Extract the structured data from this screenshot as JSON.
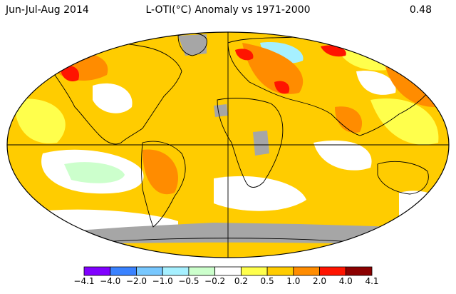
{
  "header": {
    "period": "Jun-Jul-Aug 2014",
    "title": "L-OTI(°C) Anomaly vs 1971-2000",
    "global_mean": "0.48"
  },
  "legend": {
    "labels": [
      "−4.1",
      "−4.0",
      "−2.0",
      "−1.0",
      "−0.5",
      "−0.2",
      "0.2",
      "0.5",
      "1.0",
      "2.0",
      "4.0",
      "4.1"
    ],
    "colors": [
      "#8000ff",
      "#3a82ff",
      "#78c8ff",
      "#a6f0ff",
      "#ccffcc",
      "#ffffff",
      "#ffff4c",
      "#ffcc00",
      "#ff8c00",
      "#ff1400",
      "#8b0000"
    ]
  },
  "palette": {
    "missing": "#a6a6a6",
    "land_outline": "#000000",
    "frame": "#000000"
  }
}
